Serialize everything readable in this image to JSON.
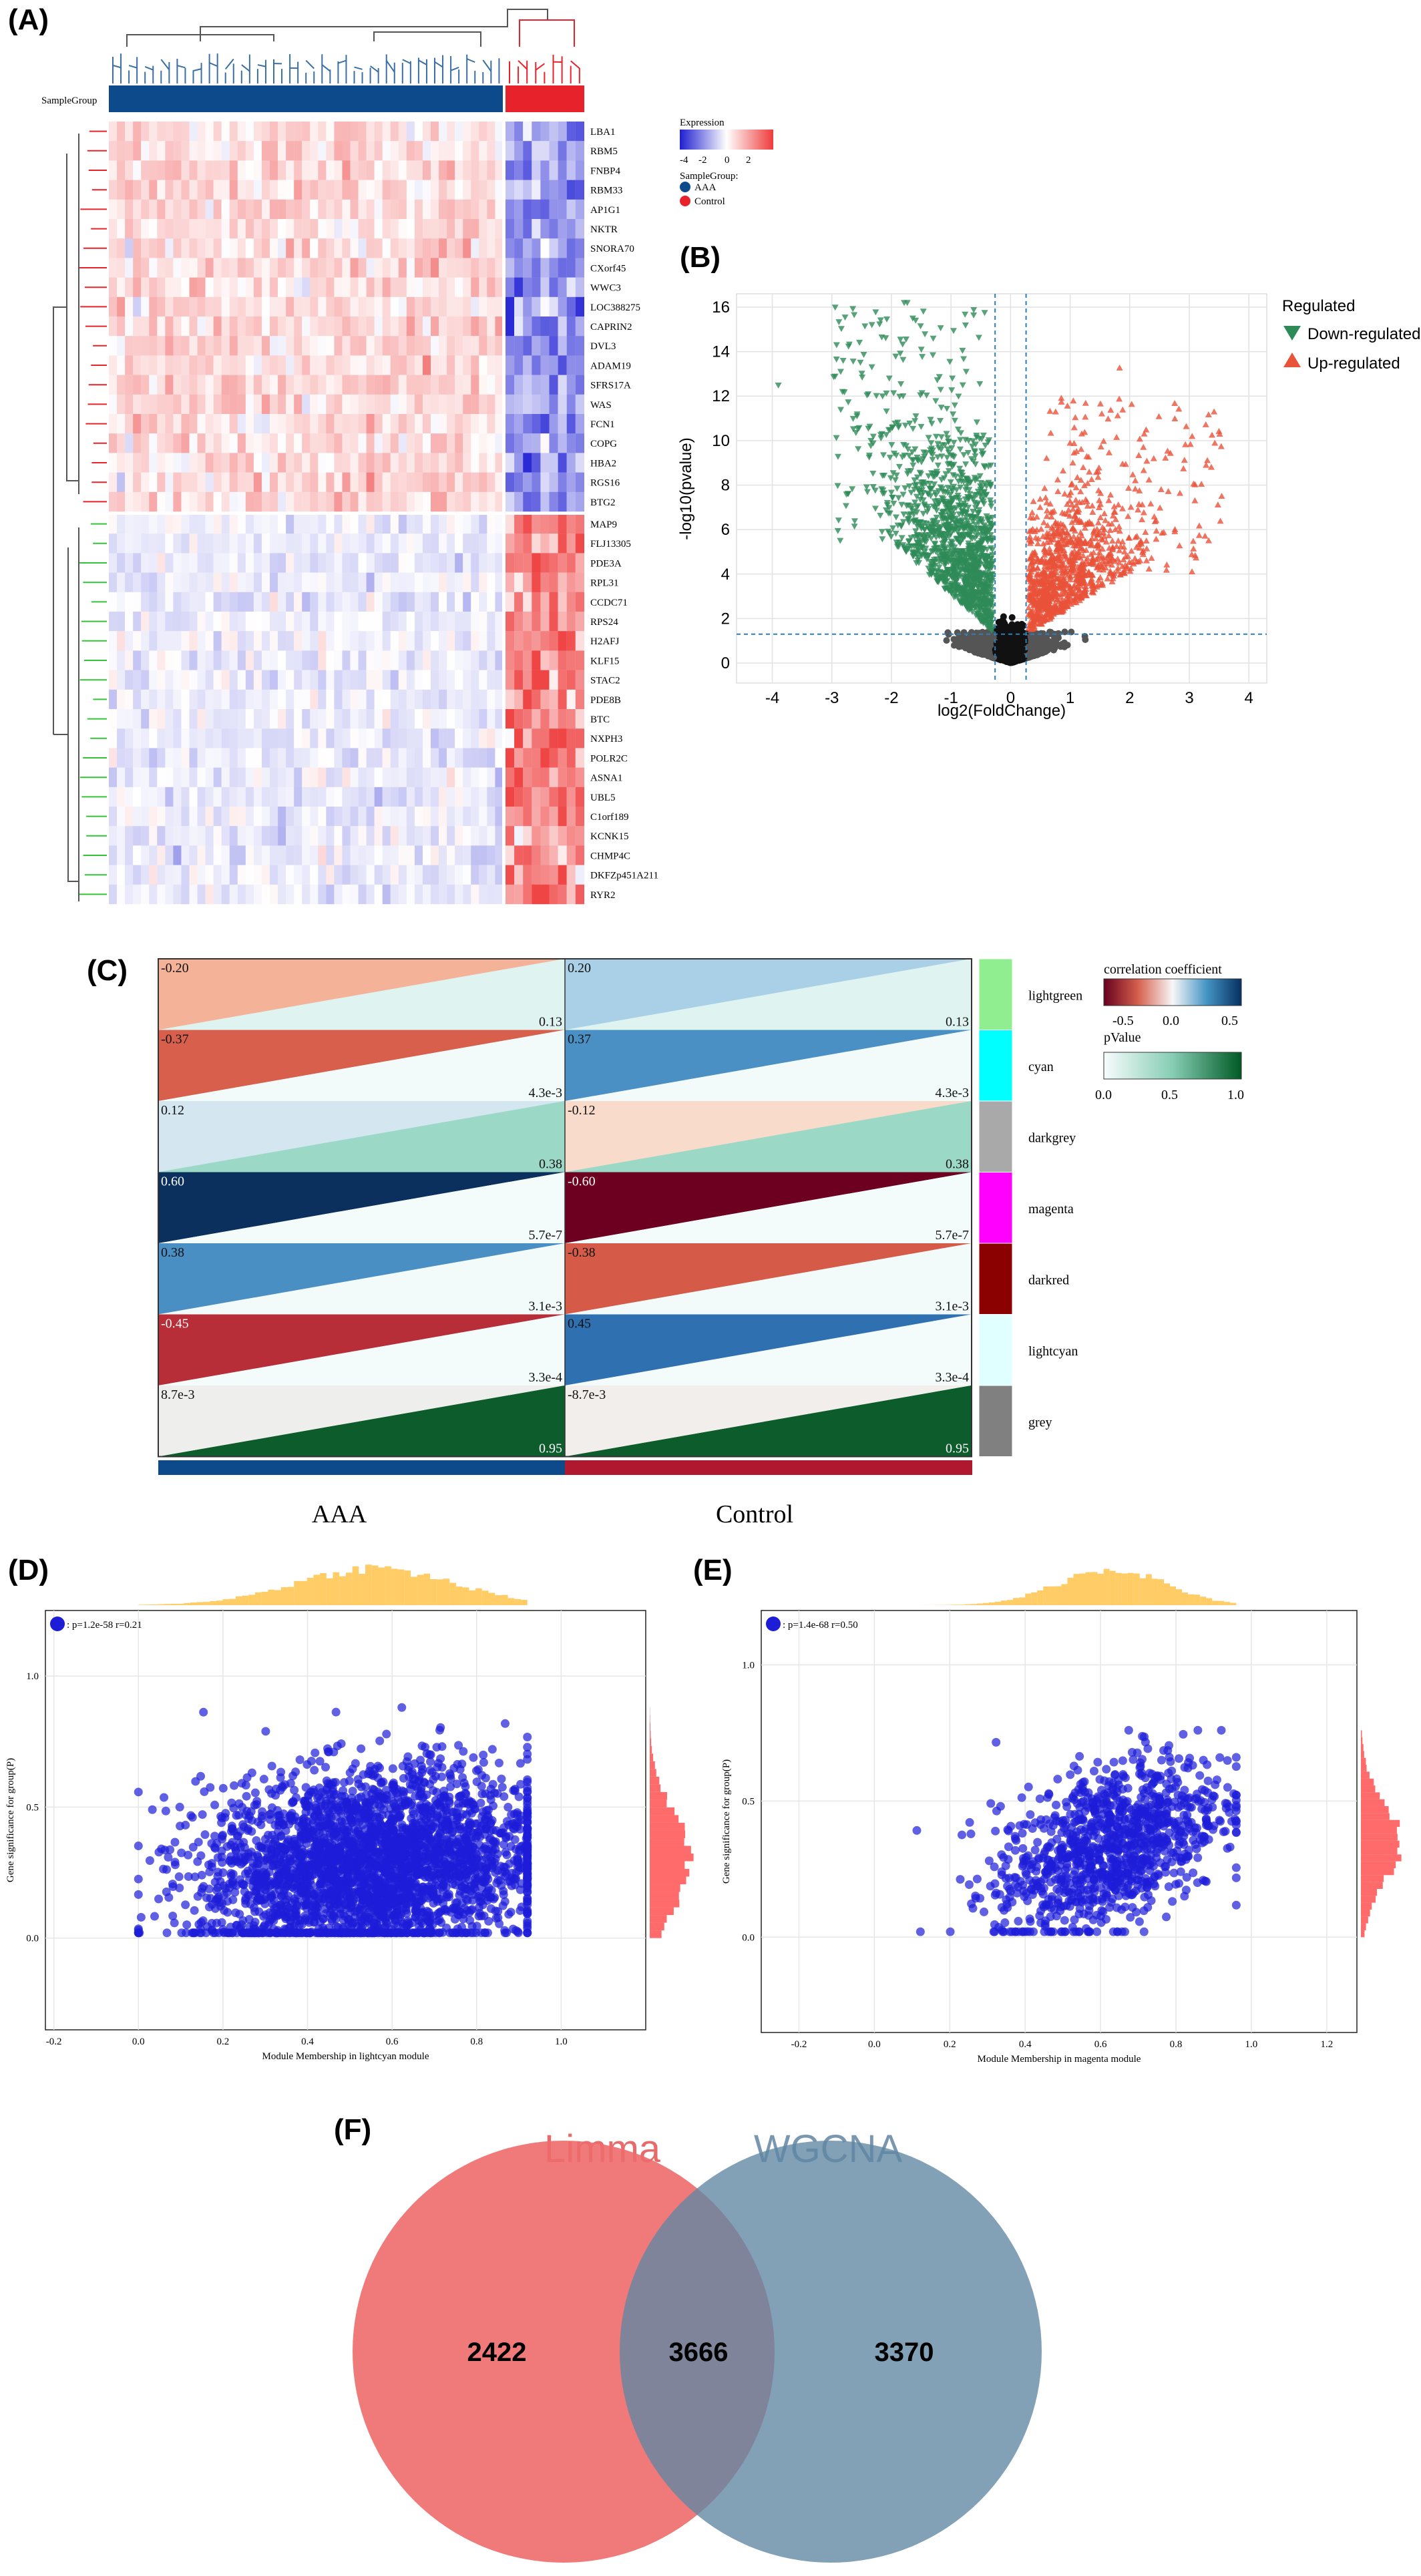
{
  "panels": {
    "a": "(A)",
    "b": "(B)",
    "c": "(C)",
    "d": "(D)",
    "e": "(E)",
    "f": "(F)"
  },
  "heatmap": {
    "sample_group_label": "SampleGroup",
    "legend_title": "Expression",
    "legend_ticks": [
      "-4",
      "-2",
      "0",
      "2"
    ],
    "legend_group_title": "SampleGroup:",
    "groups": [
      {
        "name": "AAA",
        "color": "#0c4a8c"
      },
      {
        "name": "Control",
        "color": "#e8222a"
      }
    ],
    "genes_down": [
      "LBA1",
      "RBM5",
      "FNBP4",
      "RBM33",
      "AP1G1",
      "NKTR",
      "SNORA70",
      "CXorf45",
      "WWC3",
      "LOC388275",
      "CAPRIN2",
      "DVL3",
      "ADAM19",
      "SFRS17A",
      "WAS",
      "FCN1",
      "COPG",
      "HBA2",
      "RGS16",
      "BTG2"
    ],
    "genes_up": [
      "MAP9",
      "FLJ13305",
      "PDE3A",
      "RPL31",
      "CCDC71",
      "RPS24",
      "H2AFJ",
      "KLF15",
      "STAC2",
      "PDE8B",
      "BTC",
      "NXPH3",
      "POLR2C",
      "ASNA1",
      "UBL5",
      "C1orf189",
      "KCNK15",
      "CHMP4C",
      "DKFZp451A211",
      "RYR2"
    ],
    "colors": {
      "low": "#2b2bd6",
      "mid": "#ffffff",
      "high": "#ef4545"
    }
  },
  "volcano": {
    "xlabel": "log2(FoldChange)",
    "ylabel": "-log10(pvalue)",
    "xticks": [
      "-4",
      "-3",
      "-2",
      "-1",
      "0",
      "1",
      "2",
      "3",
      "4"
    ],
    "yticks": [
      "0",
      "2",
      "4",
      "6",
      "8",
      "10",
      "12",
      "14",
      "16"
    ],
    "legend_title": "Regulated",
    "legend": [
      {
        "name": "Down-regulated",
        "color": "#2e8b57"
      },
      {
        "name": "Up-regulated",
        "color": "#e8533a"
      }
    ]
  },
  "wgcna": {
    "groups": [
      "AAA",
      "Control"
    ],
    "group_colors": [
      "#0c4a8c",
      "#b0182f"
    ],
    "modules": [
      {
        "name": "lightgreen",
        "color": "#90ee90",
        "r_aaa": "-0.20",
        "p_aaa": "0.13",
        "r_ctrl": "0.20",
        "p_ctrl": "0.13",
        "c_aaa": "#f4b398",
        "c_ctrl": "#a9d0e6",
        "pc": "#dff3f1"
      },
      {
        "name": "cyan",
        "color": "#00ffff",
        "r_aaa": "-0.37",
        "p_aaa": "4.3e-3",
        "r_ctrl": "0.37",
        "p_ctrl": "4.3e-3",
        "c_aaa": "#d75f4c",
        "c_ctrl": "#4a90c4",
        "pc": "#f2fafa"
      },
      {
        "name": "darkgrey",
        "color": "#a9a9a9",
        "r_aaa": "0.12",
        "p_aaa": "0.38",
        "r_ctrl": "-0.12",
        "p_ctrl": "0.38",
        "c_aaa": "#d4e6f0",
        "c_ctrl": "#f9dbcb",
        "pc": "#9cd8c6"
      },
      {
        "name": "magenta",
        "color": "#ff00ff",
        "r_aaa": "0.60",
        "p_aaa": "5.7e-7",
        "r_ctrl": "-0.60",
        "p_ctrl": "5.7e-7",
        "c_aaa": "#0b305d",
        "c_ctrl": "#6d0020",
        "pc": "#f4fbfb"
      },
      {
        "name": "darkred",
        "color": "#8b0000",
        "r_aaa": "0.38",
        "p_aaa": "3.1e-3",
        "r_ctrl": "-0.38",
        "p_ctrl": "3.1e-3",
        "c_aaa": "#4a8fc4",
        "c_ctrl": "#d55a48",
        "pc": "#f3fafa"
      },
      {
        "name": "lightcyan",
        "color": "#e0ffff",
        "r_aaa": "-0.45",
        "p_aaa": "3.3e-4",
        "r_ctrl": "0.45",
        "p_ctrl": "3.3e-4",
        "c_aaa": "#b72d38",
        "c_ctrl": "#2f70b0",
        "pc": "#f4fbfb"
      },
      {
        "name": "grey",
        "color": "#808080",
        "r_aaa": "8.7e-3",
        "p_aaa": "0.95",
        "r_ctrl": "-8.7e-3",
        "p_ctrl": "0.95",
        "c_aaa": "#eeeeec",
        "c_ctrl": "#f1eeec",
        "pc": "#0d5c2c"
      }
    ],
    "cc_title": "correlation coefficient",
    "cc_ticks": [
      "-0.5",
      "0.0",
      "0.5"
    ],
    "p_title": "pValue",
    "p_ticks": [
      "0.0",
      "0.5",
      "1.0"
    ]
  },
  "scatter_d": {
    "stat": ": p=1.2e-58 r=0.21",
    "xlabel": "Module Membership in lightcyan module",
    "ylabel": "Gene significance for group(P)",
    "xticks": [
      "-0.2",
      "0.0",
      "0.2",
      "0.4",
      "0.6",
      "0.8",
      "1.0"
    ],
    "yticks": [
      "0.0",
      "0.5",
      "1.0"
    ],
    "point_color": "#1d1dd8",
    "hist_color_top": "#ffbf3f",
    "hist_color_side": "#ff5050"
  },
  "scatter_e": {
    "stat": ": p=1.4e-68 r=0.50",
    "xlabel": "Module Membership in magenta module",
    "ylabel": "Gene significance for group(P)",
    "xticks": [
      "-0.2",
      "0.0",
      "0.2",
      "0.4",
      "0.6",
      "0.8",
      "1.0",
      "1.2"
    ],
    "yticks": [
      "0.0",
      "0.5",
      "1.0"
    ],
    "point_color": "#1d1dd8",
    "hist_color_top": "#ffbf3f",
    "hist_color_side": "#ff5050"
  },
  "chart_data": [
    {
      "type": "heatmap",
      "title": "",
      "rows": [
        "LBA1",
        "RBM5",
        "FNBP4",
        "RBM33",
        "AP1G1",
        "NKTR",
        "SNORA70",
        "CXorf45",
        "WWC3",
        "LOC388275",
        "CAPRIN2",
        "DVL3",
        "ADAM19",
        "SFRS17A",
        "WAS",
        "FCN1",
        "COPG",
        "HBA2",
        "RGS16",
        "BTG2",
        "MAP9",
        "FLJ13305",
        "PDE3A",
        "RPL31",
        "CCDC71",
        "RPS24",
        "H2AFJ",
        "KLF15",
        "STAC2",
        "PDE8B",
        "BTC",
        "NXPH3",
        "POLR2C",
        "ASNA1",
        "UBL5",
        "C1orf189",
        "KCNK15",
        "CHMP4C",
        "DKFZp451A211",
        "RYR2"
      ],
      "groups": [
        "AAA",
        "Control"
      ],
      "color_range": [
        -4,
        2
      ]
    },
    {
      "type": "scatter",
      "title": "",
      "xlabel": "log2(FoldChange)",
      "ylabel": "-log10(pvalue)",
      "xlim": [
        -4.6,
        4.3
      ],
      "ylim": [
        -0.9,
        16.6
      ],
      "thresholds": {
        "x": [
          -0.26,
          0.26
        ],
        "y": 1.3
      },
      "series": [
        {
          "name": "Down-regulated"
        },
        {
          "name": "Up-regulated"
        }
      ]
    },
    {
      "type": "heatmap",
      "title": "",
      "modules": [
        "lightgreen",
        "cyan",
        "darkgrey",
        "magenta",
        "darkred",
        "lightcyan",
        "grey"
      ],
      "groups": [
        "AAA",
        "Control"
      ],
      "correlation_AAA": [
        -0.2,
        -0.37,
        0.12,
        0.6,
        0.38,
        -0.45,
        0.0087
      ],
      "pvalue_AAA": [
        0.13,
        0.0043,
        0.38,
        5.7e-07,
        0.0031,
        0.00033,
        0.95
      ],
      "correlation_Control": [
        0.2,
        0.37,
        -0.12,
        -0.6,
        -0.38,
        0.45,
        -0.0087
      ],
      "pvalue_Control": [
        0.13,
        0.0043,
        0.38,
        5.7e-07,
        0.0031,
        0.00033,
        0.95
      ]
    },
    {
      "type": "scatter",
      "title": "",
      "xlabel": "Module Membership in lightcyan module",
      "ylabel": "Gene significance for group(P)",
      "xlim": [
        -0.22,
        1.2
      ],
      "ylim": [
        -0.35,
        1.25
      ],
      "p": "1.2e-58",
      "r": 0.21
    },
    {
      "type": "scatter",
      "title": "",
      "xlabel": "Module Membership in magenta module",
      "ylabel": "Gene significance for group(P)",
      "xlim": [
        -0.3,
        1.28
      ],
      "ylim": [
        -0.35,
        1.2
      ],
      "p": "1.4e-68",
      "r": 0.5
    },
    {
      "type": "venn",
      "sets": [
        {
          "name": "Limma",
          "only": 2422,
          "color": "#ee6b6b"
        },
        {
          "name": "WGCNA",
          "only": 3370,
          "color": "#6b8fa8"
        }
      ],
      "intersection": 3666
    }
  ],
  "venn": {
    "left_label": "Limma",
    "right_label": "WGCNA",
    "left_only": "2422",
    "both": "3666",
    "right_only": "3370"
  }
}
